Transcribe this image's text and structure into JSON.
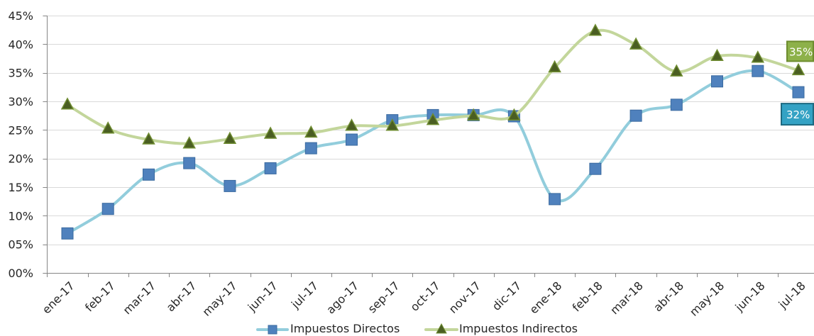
{
  "chart_data": {
    "type": "line",
    "smooth": true,
    "grid": true,
    "legend_position": "bottom",
    "ylim": [
      0,
      45
    ],
    "y_ticks": [
      {
        "value": 0,
        "label": "00%"
      },
      {
        "value": 5,
        "label": "05%"
      },
      {
        "value": 10,
        "label": "10%"
      },
      {
        "value": 15,
        "label": "15%"
      },
      {
        "value": 20,
        "label": "20%"
      },
      {
        "value": 25,
        "label": "25%"
      },
      {
        "value": 30,
        "label": "30%"
      },
      {
        "value": 35,
        "label": "35%"
      },
      {
        "value": 40,
        "label": "40%"
      },
      {
        "value": 45,
        "label": "45%"
      }
    ],
    "categories": [
      "ene-17",
      "feb-17",
      "mar-17",
      "abr-17",
      "may-17",
      "jun-17",
      "jul-17",
      "ago-17",
      "sep-17",
      "oct-17",
      "nov-17",
      "dic-17",
      "ene-18",
      "feb-18",
      "mar-18",
      "abr-18",
      "may-18",
      "jun-18",
      "jul-18"
    ],
    "series": [
      {
        "name": "Impuestos Directos",
        "marker": "square",
        "line_color": "#92cddc",
        "marker_color": "#4f81bd",
        "marker_border_color": "#3a6a9f",
        "values": [
          6.9,
          11.2,
          17.2,
          19.2,
          15.2,
          18.3,
          21.8,
          23.3,
          26.7,
          27.6,
          27.6,
          27.4,
          12.9,
          18.2,
          27.5,
          29.4,
          33.5,
          35.3,
          31.6
        ],
        "end_label": {
          "text": "32%",
          "fill": "#34a2c4",
          "border": "#1d6a82"
        }
      },
      {
        "name": "Impuestos Indirectos",
        "marker": "triangle",
        "line_color": "#c3d69b",
        "marker_color": "#4a5e22",
        "marker_border_color": "#6f8c31",
        "values": [
          29.4,
          25.2,
          23.3,
          22.6,
          23.4,
          24.3,
          24.5,
          25.7,
          25.7,
          26.7,
          27.5,
          27.5,
          35.9,
          42.3,
          39.9,
          35.2,
          37.9,
          37.6,
          35.4
        ],
        "end_label": {
          "text": "35%",
          "fill": "#8db14a",
          "border": "#6d8c2e"
        }
      }
    ],
    "grid_color": "#d9d9d9",
    "axis_color": "#868686"
  }
}
